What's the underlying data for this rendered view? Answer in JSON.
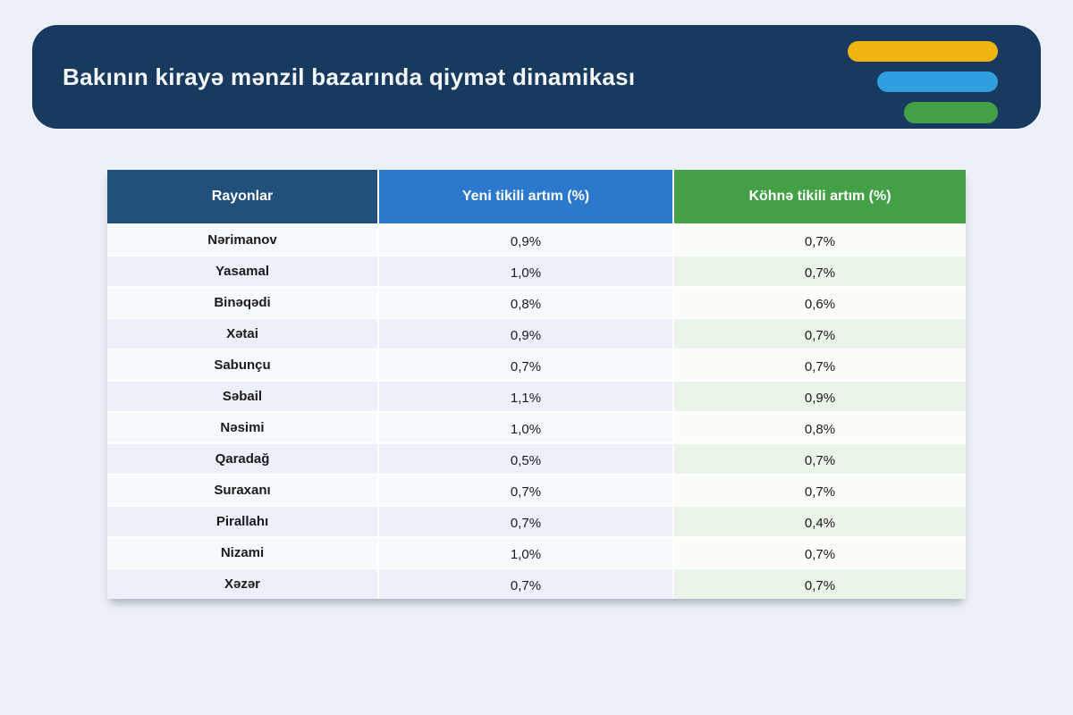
{
  "page": {
    "background": "#edf1f7"
  },
  "banner": {
    "title": "Bakının kirayə mənzil bazarında qiymət dinamikası",
    "background": "#173a5e",
    "title_color": "#f5f7fa",
    "bars": [
      {
        "name": "bar-yellow",
        "color": "#f0b60f"
      },
      {
        "name": "bar-blue",
        "color": "#2f9fdf"
      },
      {
        "name": "bar-green",
        "color": "#43a047"
      }
    ]
  },
  "table": {
    "columns": [
      {
        "label": "Rayonlar",
        "color": "#21507c"
      },
      {
        "label": "Yeni tikili artım (%)",
        "color": "#2b78cd"
      },
      {
        "label": "Köhnə tikili artım (%)",
        "color": "#43a047"
      }
    ],
    "rows": [
      {
        "region": "Nərimanov",
        "yeni": "0,9%",
        "kohne": "0,7%"
      },
      {
        "region": "Yasamal",
        "yeni": "1,0%",
        "kohne": "0,7%"
      },
      {
        "region": "Binəqədi",
        "yeni": "0,8%",
        "kohne": "0,6%"
      },
      {
        "region": "Xətai",
        "yeni": "0,9%",
        "kohne": "0,7%"
      },
      {
        "region": "Sabunçu",
        "yeni": "0,7%",
        "kohne": "0,7%"
      },
      {
        "region": "Səbail",
        "yeni": "1,1%",
        "kohne": "0,9%"
      },
      {
        "region": "Nəsimi",
        "yeni": "1,0%",
        "kohne": "0,8%"
      },
      {
        "region": "Qaradağ",
        "yeni": "0,5%",
        "kohne": "0,7%"
      },
      {
        "region": "Suraxanı",
        "yeni": "0,7%",
        "kohne": "0,7%"
      },
      {
        "region": "Pirallahı",
        "yeni": "0,7%",
        "kohne": "0,4%"
      },
      {
        "region": "Nizami",
        "yeni": "1,0%",
        "kohne": "0,7%"
      },
      {
        "region": "Xəzər",
        "yeni": "0,7%",
        "kohne": "0,7%"
      }
    ]
  },
  "chart_data": {
    "type": "table",
    "title": "Bakının kirayə mənzil bazarında qiymət dinamikası",
    "columns": [
      "Rayonlar",
      "Yeni tikili artım (%)",
      "Köhnə tikili artım (%)"
    ],
    "rows": [
      [
        "Nərimanov",
        0.9,
        0.7
      ],
      [
        "Yasamal",
        1.0,
        0.7
      ],
      [
        "Binəqədi",
        0.8,
        0.6
      ],
      [
        "Xətai",
        0.9,
        0.7
      ],
      [
        "Sabunçu",
        0.7,
        0.7
      ],
      [
        "Səbail",
        1.1,
        0.9
      ],
      [
        "Nəsimi",
        1.0,
        0.8
      ],
      [
        "Qaradağ",
        0.5,
        0.7
      ],
      [
        "Suraxanı",
        0.7,
        0.7
      ],
      [
        "Pirallahı",
        0.7,
        0.4
      ],
      [
        "Nizami",
        1.0,
        0.7
      ],
      [
        "Xəzər",
        0.7,
        0.7
      ]
    ],
    "unit": "percent",
    "decimal_separator": ","
  }
}
